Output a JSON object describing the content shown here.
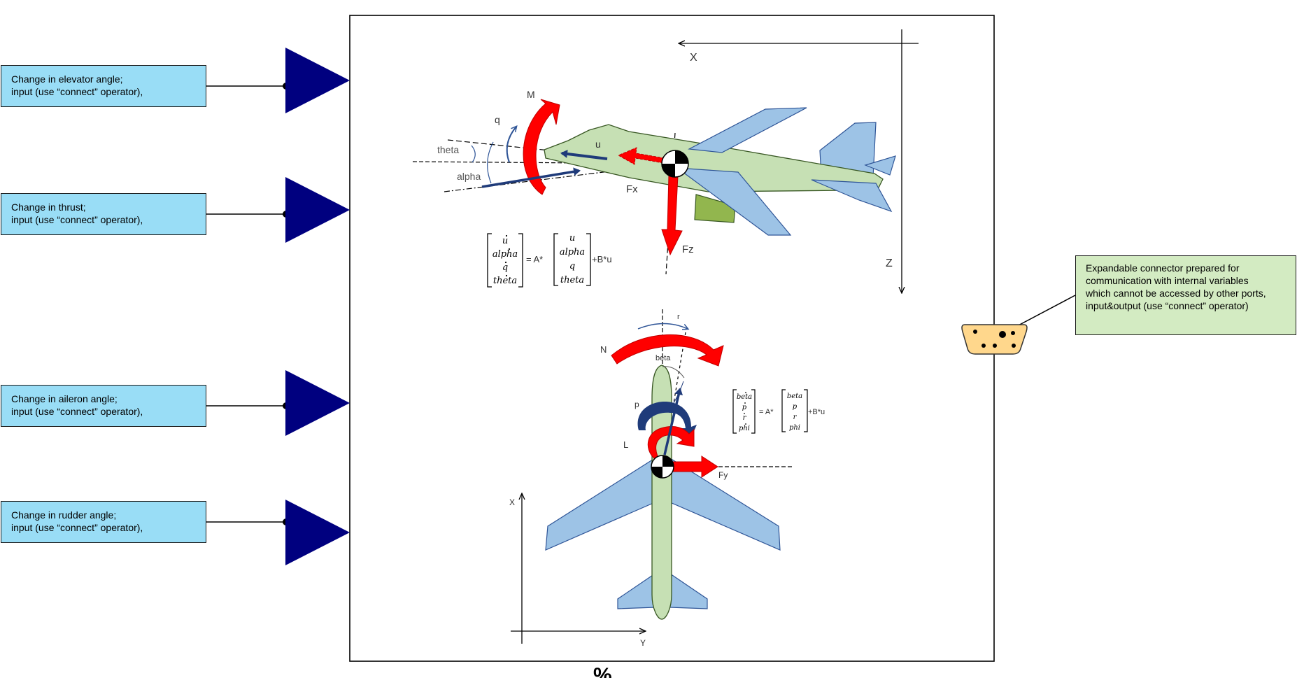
{
  "ports": [
    {
      "line1": "Change in elevator angle;",
      "line2": "input (use “connect” operator),"
    },
    {
      "line1": "Change in thrust;",
      "line2": "input (use “connect” operator),"
    },
    {
      "line1": "Change in aileron angle;",
      "line2": "input (use “connect” operator),"
    },
    {
      "line1": "Change in rudder angle;",
      "line2": "input (use “connect” operator),"
    }
  ],
  "bus_note": {
    "lines": [
      "Expandable connector prepared for",
      "communication with internal variables",
      "which cannot be accessed by other ports,",
      "input&output  (use “connect” operator)"
    ]
  },
  "side_view": {
    "axis_x": "X",
    "axis_z": "Z",
    "label_m": "M",
    "label_q": "q",
    "label_theta": "theta",
    "label_alpha": "alpha",
    "label_u": "u",
    "label_fx": "Fx",
    "label_fz": "Fz",
    "eq_state": [
      "u",
      "alpha",
      "q",
      "theta"
    ],
    "eq_mid": "= A*",
    "eq_tail": "+B*u"
  },
  "top_view": {
    "axis_x": "X",
    "axis_y": "Y",
    "label_n": "N",
    "label_r": "r",
    "label_beta": "beta",
    "label_p": "p",
    "label_l": "L",
    "label_fy": "Fy",
    "eq_state": [
      "beta",
      "p",
      "r",
      "phi"
    ],
    "eq_mid": "= A*",
    "eq_tail": "+B*u"
  },
  "colors": {
    "port_fill": "#00007f",
    "callout_blue": "#99ddf6",
    "callout_green": "#d3ebc2",
    "fuselage": "#c6e0b4",
    "wing": "#9dc3e6",
    "engine": "#92b64e",
    "force": "#ff0000",
    "motion": "#1f3b7a",
    "bus": "#ffd78c"
  },
  "icons": [
    "cg-marker-icon",
    "bus-connector-icon",
    "input-port-triangle-icon"
  ]
}
